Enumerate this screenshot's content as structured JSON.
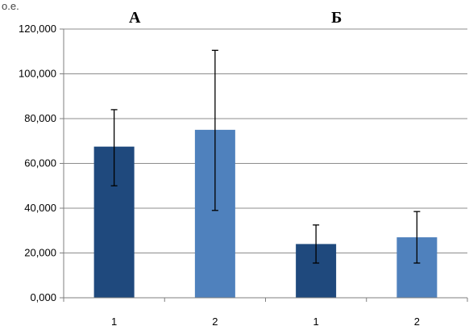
{
  "chart_data": {
    "type": "bar",
    "unit_label": "о.е.",
    "groups": [
      {
        "label": "А",
        "categories": [
          "1",
          "2"
        ]
      },
      {
        "label": "Б",
        "categories": [
          "1",
          "2"
        ]
      }
    ],
    "bars": [
      {
        "group": "А",
        "category": "1",
        "value": 67.5,
        "error_low": 50.0,
        "error_high": 84.0,
        "color": "#1f497d"
      },
      {
        "group": "А",
        "category": "2",
        "value": 75.0,
        "error_low": 39.0,
        "error_high": 110.5,
        "color": "#4f81bd"
      },
      {
        "group": "Б",
        "category": "1",
        "value": 24.0,
        "error_low": 15.5,
        "error_high": 32.5,
        "color": "#1f497d"
      },
      {
        "group": "Б",
        "category": "2",
        "value": 27.0,
        "error_low": 15.5,
        "error_high": 38.5,
        "color": "#4f81bd"
      }
    ],
    "y_ticks": [
      "0,000",
      "20,000",
      "40,000",
      "60,000",
      "80,000",
      "100,000",
      "120,000"
    ],
    "x_tick_labels": [
      "1",
      "2",
      "1",
      "2"
    ],
    "ylim": [
      0,
      120
    ],
    "grid": "horizontal"
  }
}
